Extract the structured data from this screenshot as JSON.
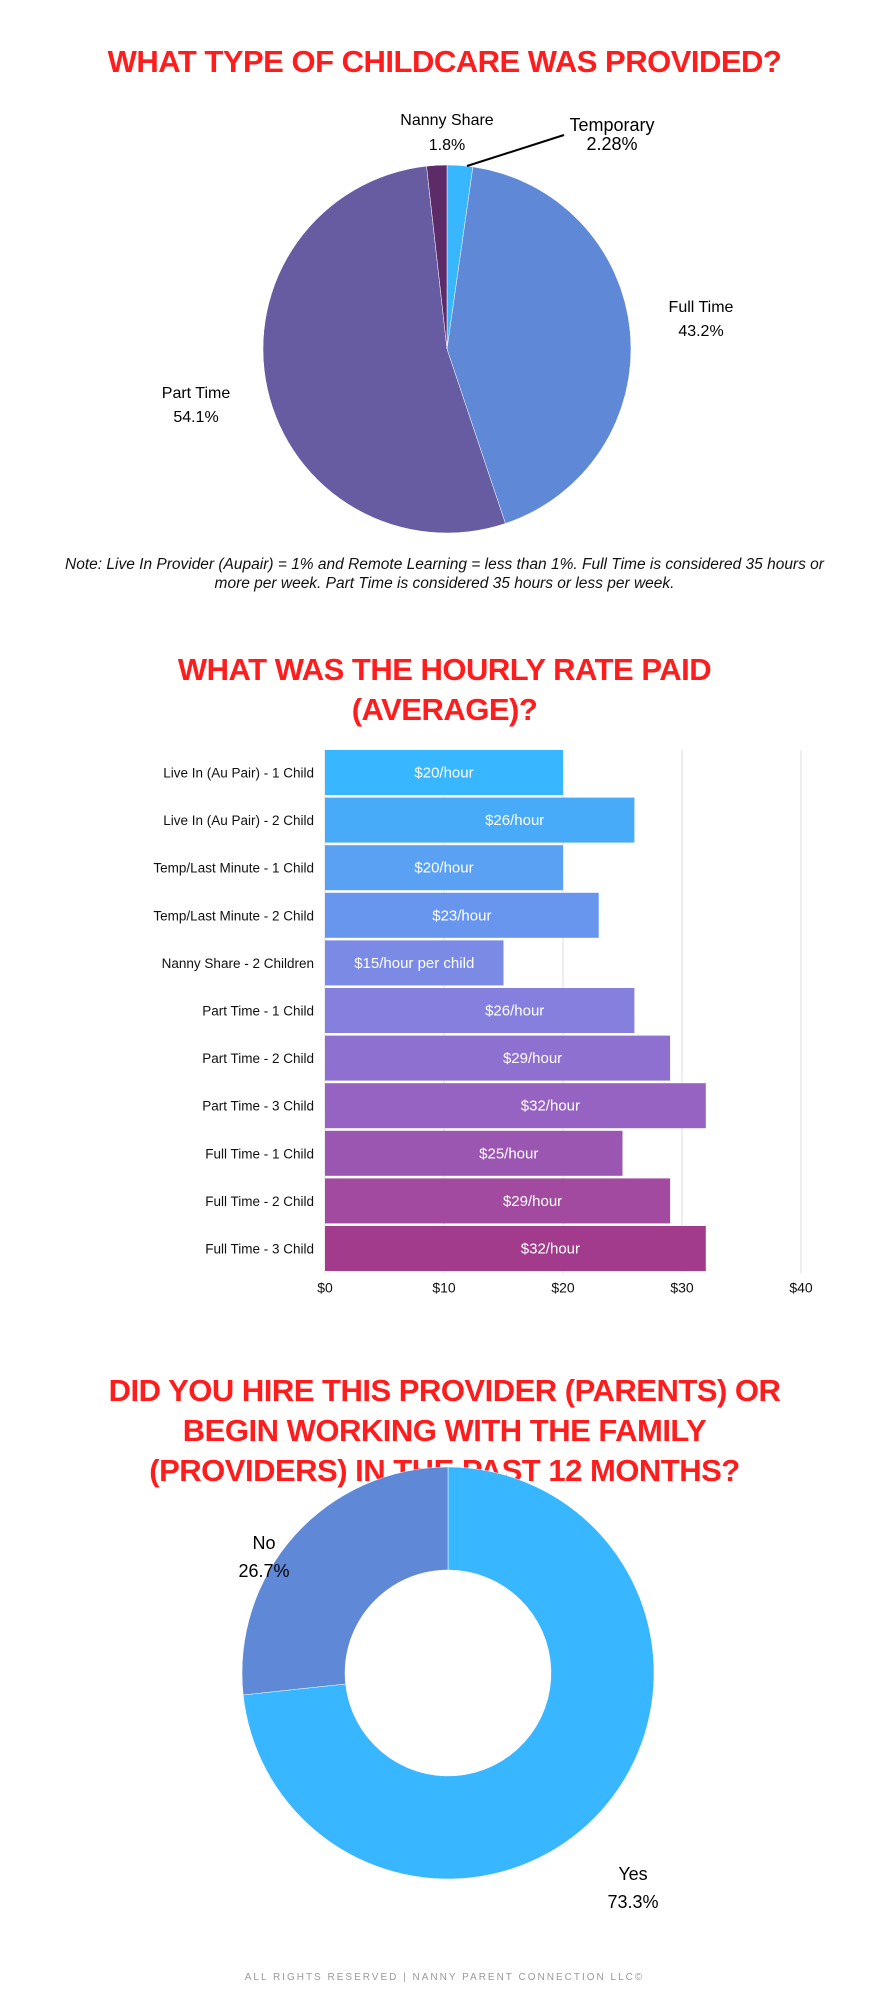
{
  "titles": {
    "childcare_type": "WHAT TYPE OF CHILDCARE WAS PROVIDED?",
    "hourly_rate": [
      "WHAT WAS THE HOURLY RATE PAID",
      "(AVERAGE)?"
    ],
    "hire_recent": [
      "DID YOU HIRE THIS PROVIDER (PARENTS) OR",
      "BEGIN WORKING WITH THE FAMILY",
      "(PROVIDERS) IN THE PAST 12 MONTHS?"
    ]
  },
  "note": "Note: Live In Provider (Aupair) = 1% and Remote Learning = less than 1%. Full Time is considered 35 hours or more per week. Part Time is considered 35 hours or less per week.",
  "footer": "ALL RIGHTS RESERVED | NANNY PARENT CONNECTION LLC©",
  "colors": {
    "title": "#ff1c1c"
  },
  "chart_data": [
    {
      "type": "pie",
      "title": "WHAT TYPE OF CHILDCARE WAS PROVIDED?",
      "slices": [
        {
          "label": "Temporary",
          "value": 2.28,
          "display": "2.28%",
          "color": "#38b6ff"
        },
        {
          "label": "Full Time",
          "value": 43.2,
          "display": "43.2%",
          "color": "#5f88d7"
        },
        {
          "label": "Part Time",
          "value": 54.1,
          "display": "54.1%",
          "color": "#675ba1"
        },
        {
          "label": "Nanny Share",
          "value": 1.8,
          "display": "1.8%",
          "color": "#5e2b69"
        }
      ]
    },
    {
      "type": "bar",
      "orientation": "horizontal",
      "title": "WHAT WAS THE HOURLY RATE PAID (AVERAGE)?",
      "categories": [
        "Live In (Au Pair) - 1 Child",
        "Live In (Au Pair) - 2 Child",
        "Temp/Last Minute - 1 Child",
        "Temp/Last Minute - 2 Child",
        "Nanny Share - 2 Children",
        "Part Time - 1 Child",
        "Part Time - 2 Child",
        "Part Time - 3 Child",
        "Full Time - 1 Child",
        "Full Time - 2 Child",
        "Full Time - 3 Child"
      ],
      "values": [
        20,
        26,
        20,
        23,
        15,
        26,
        29,
        32,
        25,
        29,
        32
      ],
      "data_labels": [
        "$20/hour",
        "$26/hour",
        "$20/hour",
        "$23/hour",
        "$15/hour per child",
        "$26/hour",
        "$29/hour",
        "$32/hour",
        "$25/hour",
        "$29/hour",
        "$32/hour"
      ],
      "colors": [
        "#38b6ff",
        "#48abfa",
        "#5aa1f3",
        "#6895ee",
        "#7a8ae5",
        "#8580dd",
        "#8e70d0",
        "#9763c3",
        "#9b56b2",
        "#a14a9f",
        "#a33b8d"
      ],
      "xlim": [
        0,
        40
      ],
      "xticks": [
        "$0",
        "$10",
        "$20",
        "$30",
        "$40"
      ],
      "xtick_values": [
        0,
        10,
        20,
        30,
        40
      ],
      "grid": true
    },
    {
      "type": "pie",
      "variant": "donut",
      "title": "DID YOU HIRE THIS PROVIDER (PARENTS) OR BEGIN WORKING WITH THE FAMILY (PROVIDERS) IN THE PAST 12 MONTHS?",
      "slices": [
        {
          "label": "Yes",
          "value": 73.3,
          "display": "73.3%",
          "color": "#38b6ff"
        },
        {
          "label": "No",
          "value": 26.7,
          "display": "26.7%",
          "color": "#5f88d7"
        }
      ]
    }
  ]
}
